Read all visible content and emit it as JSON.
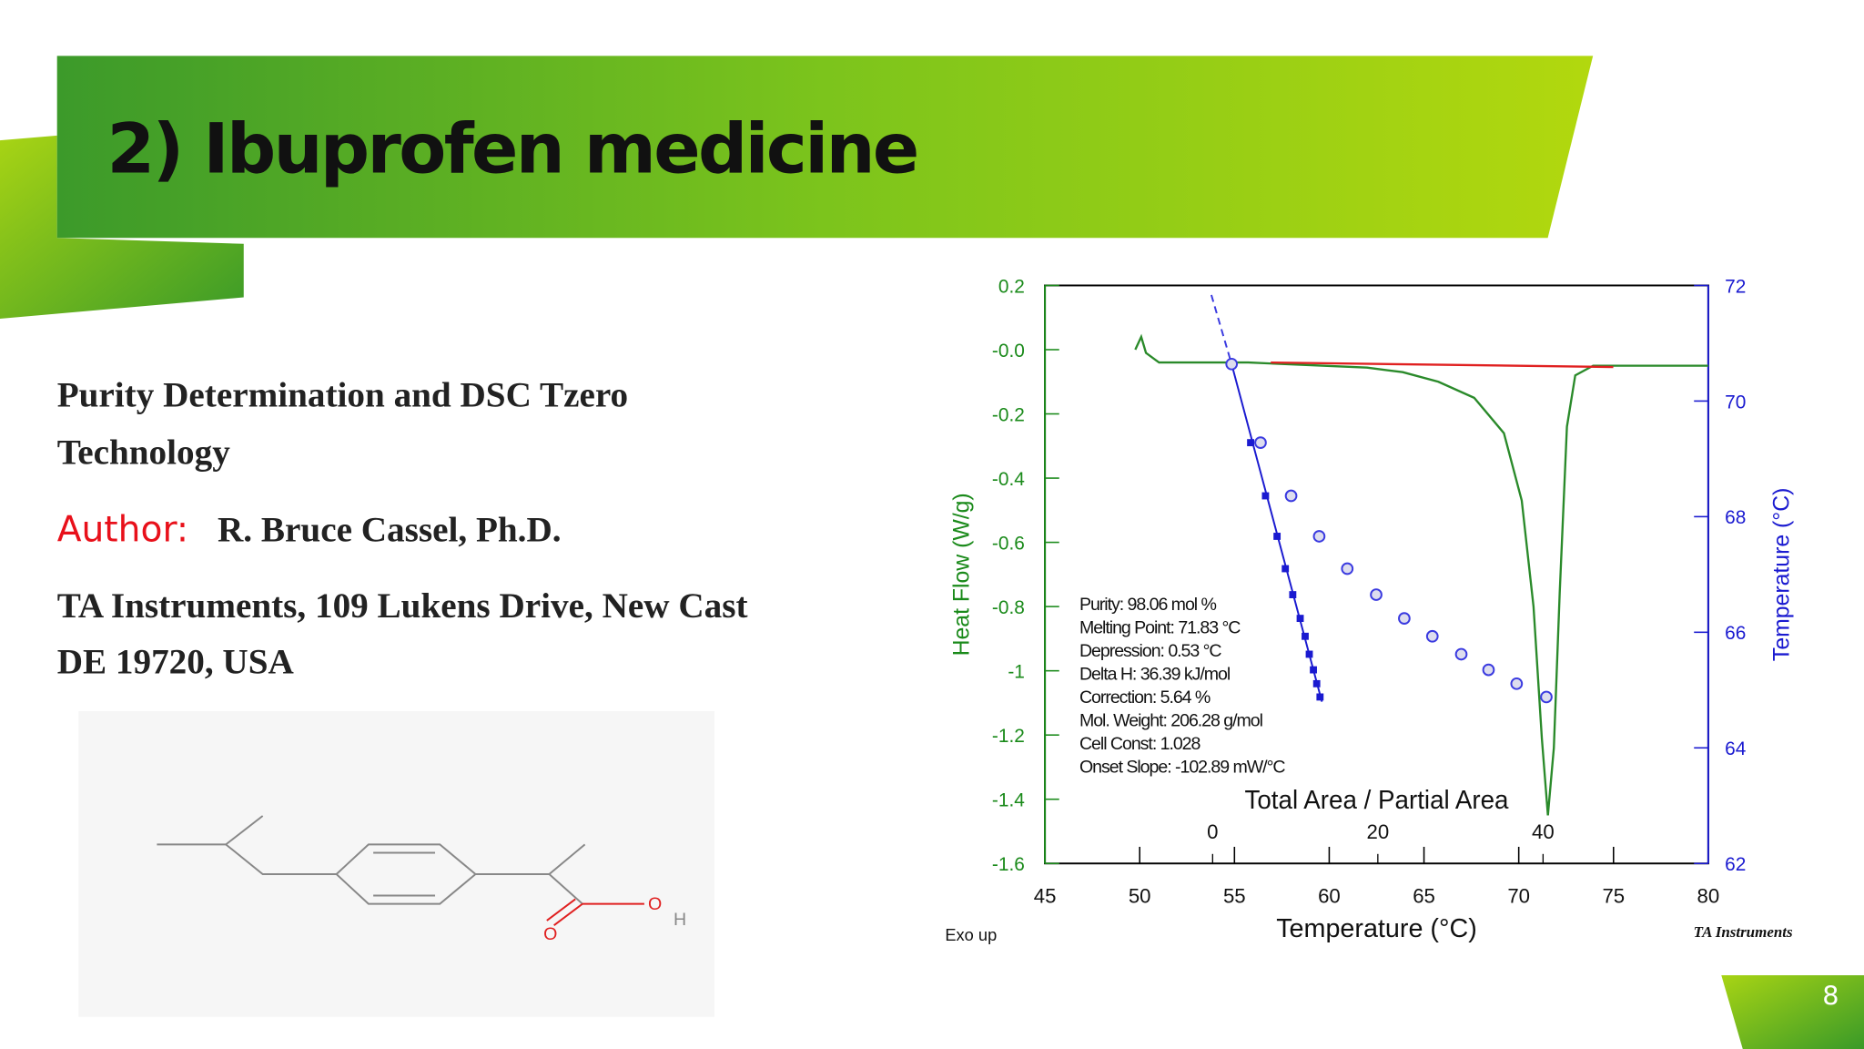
{
  "header": {
    "title": "2) Ibuprofen medicine"
  },
  "body": {
    "subtitle_lines": [
      "Purity Determination and DSC Tzero",
      "Technology"
    ],
    "author_label": "Author:",
    "author": "R. Bruce Cassel, Ph.D.",
    "affiliation_lines": [
      "TA Instruments, 109 Lukens Drive, New Cast",
      "DE 19720, USA"
    ]
  },
  "molecule": {
    "atoms": [
      "O",
      "O",
      "H"
    ]
  },
  "chart": {
    "type": "dsc",
    "x_label": "Temperature (°C)",
    "y_label": "Heat Flow (W/g)",
    "y2_label": "Temperature (°C)",
    "x2_label": "Total Area / Partial Area",
    "xlim": [
      45,
      80
    ],
    "xticks": [
      45,
      50,
      55,
      60,
      65,
      70,
      75,
      80
    ],
    "ylim": [
      -1.6,
      0.2
    ],
    "yticks": [
      0.2,
      {
        "value": 0,
        "label": "-0.0"
      },
      -0.2,
      -0.4,
      -0.6,
      -0.8,
      -1.0,
      -1.2,
      -1.4,
      -1.6
    ],
    "y2lim": [
      62,
      72
    ],
    "y2ticks": [
      62,
      64,
      66,
      68,
      70,
      72
    ],
    "x2lim": [
      -20.3,
      60
    ],
    "x2ticks": [
      0,
      20,
      40
    ],
    "series": [
      {
        "color": "#2a8a2a",
        "x": [
          49.77,
          50.08,
          50.33,
          51.02,
          55.73,
          62.0,
          63.88,
          65.76,
          67.65,
          69.22,
          70.16,
          70.78,
          71.22,
          71.54,
          71.85,
          72.16,
          72.54,
          72.98,
          73.92,
          80
        ],
        "values": [
          0.0,
          0.04,
          -0.01,
          -0.04,
          -0.04,
          -0.056,
          -0.07,
          -0.1,
          -0.15,
          -0.26,
          -0.47,
          -0.8,
          -1.21,
          -1.45,
          -1.24,
          -0.76,
          -0.24,
          -0.08,
          -0.05,
          -0.05
        ]
      },
      {
        "color": "#e02020",
        "x": [
          56.92,
          74.99
        ],
        "values": [
          -0.04,
          -0.054
        ]
      },
      {
        "color": "#1a1ad0",
        "axis": "y2",
        "x_axis": "x2",
        "marker": "square",
        "x": [
          2.3,
          4.6,
          6.4,
          7.8,
          8.8,
          9.7,
          10.6,
          11.2,
          11.7,
          12.2,
          12.6,
          13.0
        ],
        "values": [
          70.64,
          69.28,
          68.36,
          67.66,
          67.1,
          66.65,
          66.24,
          65.93,
          65.62,
          65.35,
          65.11,
          64.88
        ]
      },
      {
        "color": "#3a3ae0",
        "axis": "y2",
        "x_axis": "x2",
        "marker": "circle",
        "x": [
          2.3,
          5.8,
          9.5,
          12.9,
          16.3,
          19.8,
          23.2,
          26.6,
          30.1,
          33.4,
          36.8,
          40.4
        ],
        "values": [
          70.64,
          69.28,
          68.36,
          67.66,
          67.1,
          66.65,
          66.24,
          65.93,
          65.62,
          65.35,
          65.11,
          64.88
        ]
      }
    ],
    "annotations": [
      "Purity: 98.06 mol %",
      "Melting Point: 71.83 °C",
      "Depression: 0.53 °C",
      "Delta H: 36.39 kJ/mol",
      "Correction: 5.64 %",
      "Mol. Weight: 206.28 g/mol",
      "Cell Const: 1.028",
      "Onset Slope: -102.89 mW/°C"
    ],
    "footer_left": "Exo up",
    "footer_right": "TA Instruments"
  },
  "page_number": "8"
}
